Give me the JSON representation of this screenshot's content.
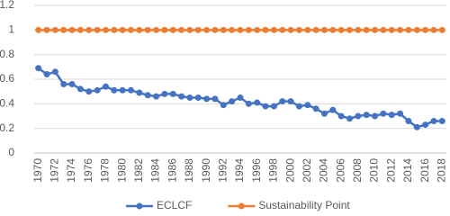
{
  "chart_data": {
    "type": "line",
    "categories": [
      "1970",
      null,
      "1972",
      null,
      "1974",
      null,
      "1976",
      null,
      "1978",
      null,
      "1980",
      null,
      "1982",
      null,
      "1984",
      null,
      "1986",
      null,
      "1988",
      null,
      "1990",
      null,
      "1992",
      null,
      "1994",
      null,
      "1996",
      null,
      "1998",
      null,
      "2000",
      null,
      "2002",
      null,
      "2004",
      null,
      "2006",
      null,
      "2008",
      null,
      "2010",
      null,
      "2012",
      null,
      "2014",
      null,
      "2016",
      null,
      "2018"
    ],
    "series": [
      {
        "name": "ECLCF",
        "color": "#4472c4",
        "values": [
          0.69,
          0.64,
          0.66,
          0.56,
          0.56,
          0.52,
          0.5,
          0.51,
          0.54,
          0.51,
          0.51,
          0.51,
          0.49,
          0.47,
          0.46,
          0.48,
          0.48,
          0.46,
          0.45,
          0.45,
          0.44,
          0.44,
          0.39,
          0.42,
          0.45,
          0.4,
          0.41,
          0.38,
          0.38,
          0.42,
          0.42,
          0.38,
          0.39,
          0.36,
          0.32,
          0.35,
          0.3,
          0.28,
          0.3,
          0.31,
          0.3,
          0.32,
          0.31,
          0.32,
          0.26,
          0.21,
          0.23,
          0.26,
          0.26
        ]
      },
      {
        "name": "Sustainability Point",
        "color": "#ed7d31",
        "values": [
          1,
          1,
          1,
          1,
          1,
          1,
          1,
          1,
          1,
          1,
          1,
          1,
          1,
          1,
          1,
          1,
          1,
          1,
          1,
          1,
          1,
          1,
          1,
          1,
          1,
          1,
          1,
          1,
          1,
          1,
          1,
          1,
          1,
          1,
          1,
          1,
          1,
          1,
          1,
          1,
          1,
          1,
          1,
          1,
          1,
          1,
          1,
          1,
          1
        ]
      }
    ],
    "ylim": [
      0,
      1.2
    ],
    "yticks": [
      0,
      0.2,
      0.4,
      0.6,
      0.8,
      1,
      1.2
    ],
    "grid": true,
    "legend": "bottom"
  }
}
